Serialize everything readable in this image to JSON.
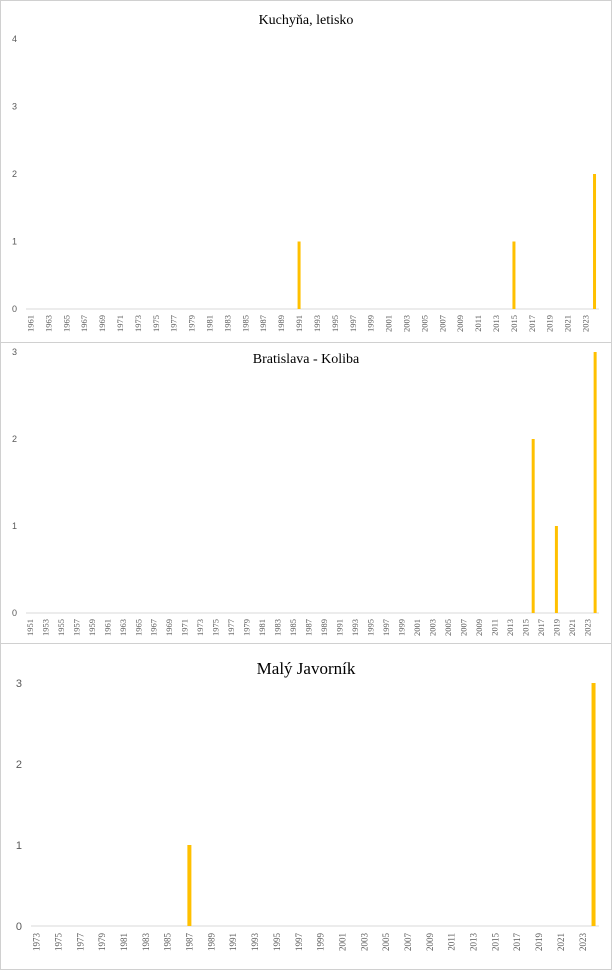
{
  "chart_data": [
    {
      "type": "bar",
      "title": "Kuchyňa,  letisko",
      "xlabel": "",
      "ylabel": "",
      "ylim": [
        0,
        4
      ],
      "yticks": [
        "0",
        "1",
        "2",
        "3",
        "4"
      ],
      "first_year": 1961,
      "last_year": 2024,
      "tick_labels": [
        "1961",
        "1963",
        "1965",
        "1967",
        "1969",
        "1971",
        "1973",
        "1975",
        "1977",
        "1979",
        "1981",
        "1983",
        "1985",
        "1987",
        "1989",
        "1991",
        "1993",
        "1995",
        "1997",
        "1999",
        "2001",
        "2003",
        "2005",
        "2007",
        "2009",
        "2011",
        "2013",
        "2015",
        "2017",
        "2019",
        "2021",
        "2023"
      ],
      "bars": [
        {
          "x": 1991,
          "y": 1
        },
        {
          "x": 2015,
          "y": 1
        },
        {
          "x": 2024,
          "y": 2
        }
      ],
      "bar_color": "#FFC000",
      "grid": false,
      "legend": "none"
    },
    {
      "type": "bar",
      "title": "Bratislava  - Koliba",
      "xlabel": "",
      "ylabel": "",
      "ylim": [
        0,
        3
      ],
      "yticks": [
        "0",
        "1",
        "2",
        "3"
      ],
      "first_year": 1951,
      "last_year": 2024,
      "tick_labels": [
        "1951",
        "1953",
        "1955",
        "1957",
        "1959",
        "1961",
        "1963",
        "1965",
        "1967",
        "1969",
        "1971",
        "1973",
        "1975",
        "1977",
        "1979",
        "1981",
        "1983",
        "1985",
        "1987",
        "1989",
        "1991",
        "1993",
        "1995",
        "1997",
        "1999",
        "2001",
        "2003",
        "2005",
        "2007",
        "2009",
        "2011",
        "2013",
        "2015",
        "2017",
        "2019",
        "2021",
        "2023"
      ],
      "bars": [
        {
          "x": 2016,
          "y": 2
        },
        {
          "x": 2019,
          "y": 1
        },
        {
          "x": 2024,
          "y": 3
        }
      ],
      "bar_color": "#FFC000",
      "grid": false,
      "legend": "none"
    },
    {
      "type": "bar",
      "title": "Malý  Javorník",
      "xlabel": "",
      "ylabel": "",
      "ylim": [
        0,
        3
      ],
      "yticks": [
        "0",
        "1",
        "2",
        "3"
      ],
      "first_year": 1973,
      "last_year": 2024,
      "tick_labels": [
        "1973",
        "1975",
        "1977",
        "1979",
        "1981",
        "1983",
        "1985",
        "1987",
        "1989",
        "1991",
        "1993",
        "1995",
        "1997",
        "1999",
        "2001",
        "2003",
        "2005",
        "2007",
        "2009",
        "2011",
        "2013",
        "2015",
        "2017",
        "2019",
        "2021",
        "2023"
      ],
      "bars": [
        {
          "x": 1987,
          "y": 1
        },
        {
          "x": 2024,
          "y": 3
        }
      ],
      "bar_color": "#FFC000",
      "grid": false,
      "legend": "none"
    }
  ]
}
